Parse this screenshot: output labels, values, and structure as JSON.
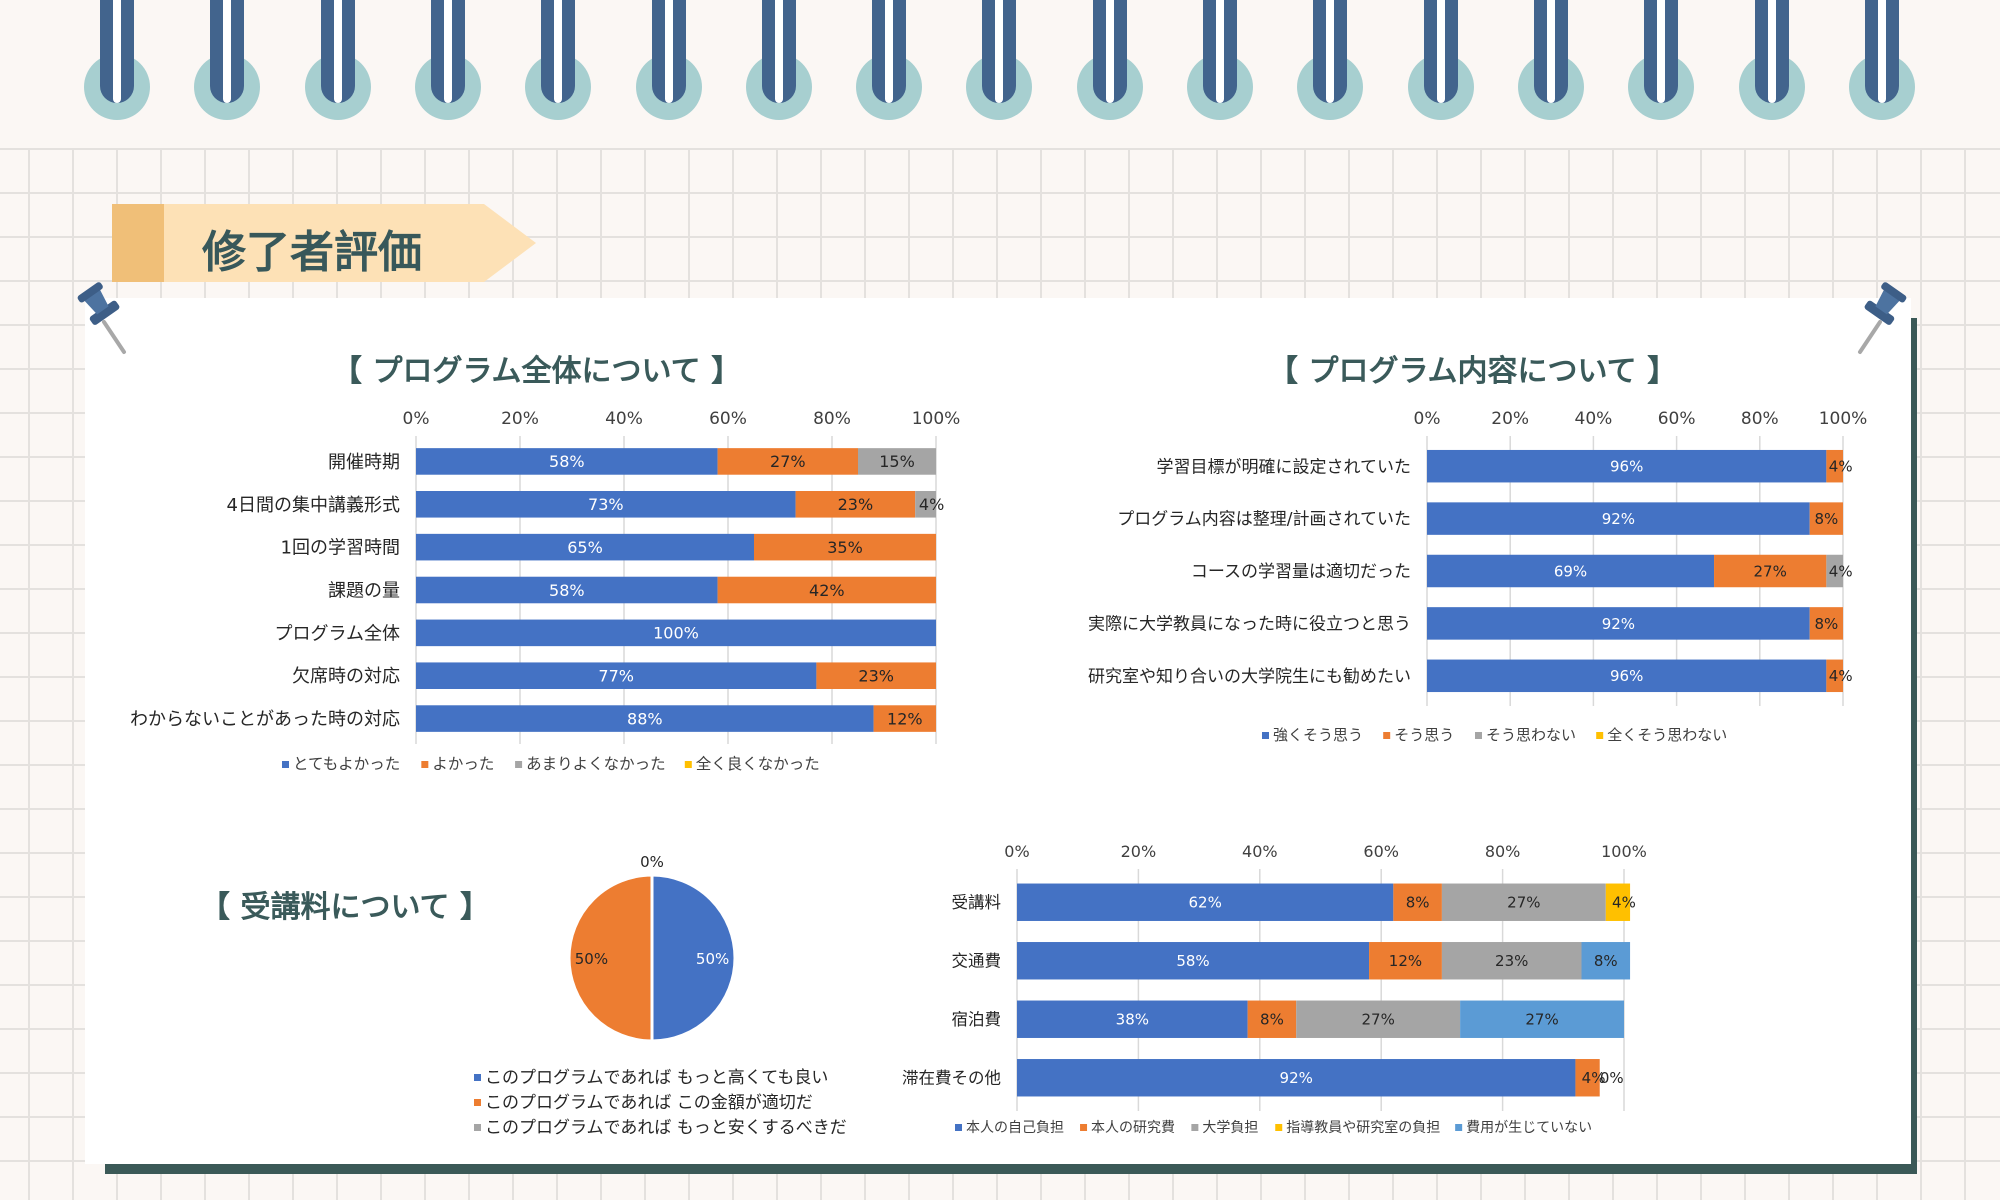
{
  "page": {
    "title": "修了者評価"
  },
  "colors": {
    "blue": "#4472c4",
    "orange": "#ed7d31",
    "gray": "#a5a5a5",
    "yellow": "#ffc000",
    "light_blue": "#5b9bd5"
  },
  "chart_data": [
    {
      "id": "overall",
      "type": "bar",
      "orientation": "horizontal",
      "stacked": true,
      "title": "【 プログラム全体について 】",
      "categories": [
        "開催時期",
        "4日間の集中講義形式",
        "1回の学習時間",
        "課題の量",
        "プログラム全体",
        "欠席時の対応",
        "わからないことがあった時の対応"
      ],
      "series": [
        {
          "name": "とてもよかった",
          "color": "#4472c4",
          "values": [
            58,
            73,
            65,
            58,
            100,
            77,
            88
          ]
        },
        {
          "name": "よかった",
          "color": "#ed7d31",
          "values": [
            27,
            23,
            35,
            42,
            0,
            23,
            12
          ]
        },
        {
          "name": "あまりよくなかった",
          "color": "#a5a5a5",
          "values": [
            15,
            4,
            0,
            0,
            0,
            0,
            0
          ]
        },
        {
          "name": "全く良くなかった",
          "color": "#ffc000",
          "values": [
            0,
            0,
            0,
            0,
            0,
            0,
            0
          ]
        }
      ],
      "xlim": [
        0,
        100
      ],
      "xticks": [
        "0%",
        "20%",
        "40%",
        "60%",
        "80%",
        "100%"
      ],
      "legend": "bottom"
    },
    {
      "id": "content",
      "type": "bar",
      "orientation": "horizontal",
      "stacked": true,
      "title": "【 プログラム内容について 】",
      "categories": [
        "学習目標が明確に設定されていた",
        "プログラム内容は整理/計画されていた",
        "コースの学習量は適切だった",
        "実際に大学教員になった時に役立つと思う",
        "研究室や知り合いの大学院生にも勧めたい"
      ],
      "series": [
        {
          "name": "強くそう思う",
          "color": "#4472c4",
          "values": [
            96,
            92,
            69,
            92,
            96
          ]
        },
        {
          "name": "そう思う",
          "color": "#ed7d31",
          "values": [
            4,
            8,
            27,
            8,
            4
          ]
        },
        {
          "name": "そう思わない",
          "color": "#a5a5a5",
          "values": [
            0,
            0,
            4,
            0,
            0
          ]
        },
        {
          "name": "全くそう思わない",
          "color": "#ffc000",
          "values": [
            0,
            0,
            0,
            0,
            0
          ]
        }
      ],
      "xlim": [
        0,
        100
      ],
      "xticks": [
        "0%",
        "20%",
        "40%",
        "60%",
        "80%",
        "100%"
      ],
      "legend": "bottom"
    },
    {
      "id": "fee",
      "type": "pie",
      "title": "【 受講料について 】",
      "slices": [
        {
          "name": "このプログラムであれば もっと高くても良い",
          "color": "#4472c4",
          "value": 50,
          "label": "50%"
        },
        {
          "name": "このプログラムであれば この金額が適切だ",
          "color": "#ed7d31",
          "value": 50,
          "label": "50%"
        },
        {
          "name": "このプログラムであれば もっと安くするべきだ",
          "color": "#a5a5a5",
          "value": 0,
          "label": "0%"
        }
      ],
      "legend": "bottom"
    },
    {
      "id": "costs",
      "type": "bar",
      "orientation": "horizontal",
      "stacked": true,
      "title": "",
      "categories": [
        "受講料",
        "交通費",
        "宿泊費",
        "滞在費その他"
      ],
      "series": [
        {
          "name": "本人の自己負担",
          "color": "#4472c4",
          "values": [
            62,
            58,
            38,
            92
          ]
        },
        {
          "name": "本人の研究費",
          "color": "#ed7d31",
          "values": [
            8,
            12,
            8,
            4
          ]
        },
        {
          "name": "大学負担",
          "color": "#a5a5a5",
          "values": [
            27,
            23,
            27,
            0
          ]
        },
        {
          "name": "指導教員や研究室の負担",
          "color": "#ffc000",
          "values": [
            4,
            0,
            0,
            0
          ]
        },
        {
          "name": "費用が生じていない",
          "color": "#5b9bd5",
          "values": [
            0,
            8,
            27,
            0
          ]
        }
      ],
      "xlim": [
        0,
        100
      ],
      "xticks": [
        "0%",
        "20%",
        "40%",
        "60%",
        "80%",
        "100%"
      ],
      "legend": "bottom"
    }
  ]
}
